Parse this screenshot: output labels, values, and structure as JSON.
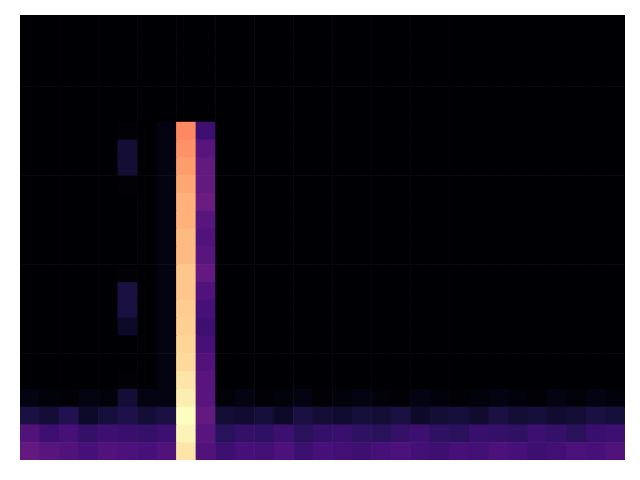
{
  "chart_data": {
    "type": "heatmap",
    "tick_labels": false,
    "values": [
      [
        3,
        3,
        3,
        3,
        3,
        3,
        3,
        3,
        3,
        3,
        3,
        3,
        3,
        3,
        3,
        3,
        3,
        3,
        3,
        3,
        3,
        3,
        3,
        3,
        3,
        3,
        3,
        3,
        3,
        3,
        3
      ],
      [
        3,
        3,
        3,
        3,
        3,
        3,
        3,
        3,
        3,
        3,
        3,
        3,
        3,
        3,
        3,
        3,
        3,
        3,
        3,
        3,
        3,
        3,
        3,
        3,
        3,
        3,
        3,
        3,
        3,
        3,
        3
      ],
      [
        3,
        3,
        3,
        3,
        3,
        3,
        3,
        3,
        3,
        3,
        3,
        3,
        3,
        3,
        3,
        3,
        3,
        3,
        3,
        3,
        3,
        3,
        3,
        3,
        3,
        3,
        3,
        3,
        3,
        3,
        3
      ],
      [
        3,
        3,
        3,
        3,
        3,
        3,
        3,
        3,
        3,
        3,
        3,
        3,
        3,
        3,
        3,
        3,
        3,
        3,
        3,
        3,
        3,
        3,
        3,
        3,
        3,
        3,
        3,
        3,
        3,
        3,
        3
      ],
      [
        3,
        3,
        3,
        3,
        3,
        3,
        3,
        3,
        3,
        3,
        3,
        3,
        3,
        3,
        3,
        3,
        3,
        3,
        3,
        3,
        3,
        3,
        3,
        3,
        3,
        3,
        3,
        3,
        3,
        3,
        3
      ],
      [
        3,
        3,
        3,
        3,
        3,
        3,
        3,
        3,
        3,
        3,
        3,
        3,
        3,
        3,
        3,
        3,
        3,
        3,
        3,
        3,
        3,
        3,
        3,
        3,
        3,
        3,
        3,
        3,
        3,
        3,
        3
      ],
      [
        3,
        3,
        3,
        3,
        3,
        4,
        3,
        6,
        72,
        22,
        3,
        3,
        3,
        3,
        3,
        3,
        3,
        3,
        3,
        3,
        3,
        3,
        3,
        3,
        3,
        3,
        3,
        3,
        3,
        3,
        3
      ],
      [
        3,
        3,
        3,
        3,
        3,
        12,
        3,
        6,
        74,
        28,
        3,
        3,
        3,
        3,
        3,
        3,
        3,
        3,
        3,
        3,
        3,
        3,
        3,
        3,
        3,
        3,
        3,
        3,
        3,
        3,
        3
      ],
      [
        3,
        3,
        3,
        3,
        3,
        12,
        3,
        6,
        76,
        30,
        3,
        3,
        3,
        3,
        3,
        3,
        3,
        3,
        3,
        3,
        3,
        3,
        3,
        3,
        3,
        3,
        3,
        3,
        3,
        3,
        3
      ],
      [
        3,
        3,
        3,
        3,
        3,
        4,
        3,
        6,
        78,
        30,
        3,
        3,
        3,
        3,
        3,
        3,
        3,
        3,
        3,
        3,
        3,
        3,
        3,
        3,
        3,
        3,
        3,
        3,
        3,
        3,
        3
      ],
      [
        3,
        3,
        3,
        3,
        3,
        3,
        3,
        6,
        80,
        32,
        3,
        3,
        3,
        3,
        3,
        3,
        3,
        3,
        3,
        3,
        3,
        3,
        3,
        3,
        3,
        3,
        3,
        3,
        3,
        3,
        3
      ],
      [
        3,
        3,
        3,
        3,
        3,
        3,
        3,
        6,
        80,
        28,
        3,
        3,
        3,
        3,
        3,
        3,
        3,
        3,
        3,
        3,
        3,
        3,
        3,
        3,
        3,
        3,
        3,
        3,
        3,
        3,
        3
      ],
      [
        3,
        3,
        3,
        3,
        3,
        3,
        3,
        6,
        82,
        26,
        3,
        3,
        3,
        3,
        3,
        3,
        3,
        3,
        3,
        3,
        3,
        3,
        3,
        3,
        3,
        3,
        3,
        3,
        3,
        3,
        3
      ],
      [
        3,
        3,
        3,
        3,
        3,
        3,
        3,
        6,
        82,
        28,
        3,
        3,
        3,
        3,
        3,
        3,
        3,
        3,
        3,
        3,
        3,
        3,
        3,
        3,
        3,
        3,
        3,
        3,
        3,
        3,
        3
      ],
      [
        3,
        3,
        3,
        3,
        3,
        4,
        3,
        6,
        84,
        30,
        3,
        3,
        3,
        3,
        3,
        3,
        3,
        3,
        3,
        3,
        3,
        3,
        3,
        3,
        3,
        3,
        3,
        3,
        3,
        3,
        3
      ],
      [
        3,
        3,
        3,
        3,
        3,
        14,
        3,
        6,
        84,
        26,
        3,
        3,
        3,
        3,
        3,
        3,
        3,
        3,
        3,
        3,
        3,
        3,
        3,
        3,
        3,
        3,
        3,
        3,
        3,
        3,
        3
      ],
      [
        3,
        3,
        3,
        3,
        3,
        14,
        3,
        6,
        85,
        24,
        3,
        3,
        3,
        3,
        3,
        3,
        3,
        3,
        3,
        3,
        3,
        3,
        3,
        3,
        3,
        3,
        3,
        3,
        3,
        3,
        3
      ],
      [
        3,
        3,
        3,
        3,
        3,
        10,
        3,
        6,
        86,
        22,
        3,
        3,
        3,
        3,
        3,
        3,
        3,
        3,
        3,
        3,
        3,
        3,
        3,
        3,
        3,
        3,
        3,
        3,
        3,
        3,
        3
      ],
      [
        3,
        3,
        3,
        3,
        3,
        3,
        3,
        6,
        87,
        24,
        3,
        3,
        3,
        3,
        3,
        3,
        3,
        3,
        3,
        3,
        3,
        3,
        3,
        3,
        3,
        3,
        3,
        3,
        3,
        3,
        3
      ],
      [
        3,
        3,
        3,
        3,
        3,
        3,
        3,
        6,
        88,
        26,
        3,
        3,
        3,
        3,
        3,
        3,
        3,
        3,
        3,
        3,
        3,
        3,
        3,
        3,
        3,
        3,
        3,
        3,
        3,
        3,
        3
      ],
      [
        3,
        3,
        3,
        3,
        3,
        4,
        3,
        6,
        90,
        28,
        3,
        3,
        3,
        3,
        3,
        3,
        3,
        3,
        3,
        3,
        3,
        3,
        3,
        3,
        3,
        3,
        3,
        3,
        3,
        3,
        3
      ],
      [
        6,
        5,
        4,
        6,
        5,
        12,
        6,
        6,
        92,
        28,
        5,
        6,
        4,
        5,
        6,
        4,
        5,
        6,
        5,
        4,
        6,
        5,
        4,
        5,
        6,
        5,
        4,
        6,
        5,
        6,
        5
      ],
      [
        14,
        12,
        16,
        10,
        13,
        15,
        12,
        14,
        95,
        30,
        12,
        11,
        13,
        10,
        14,
        12,
        11,
        13,
        12,
        14,
        10,
        12,
        13,
        11,
        14,
        12,
        13,
        11,
        12,
        14,
        13
      ],
      [
        26,
        22,
        24,
        20,
        22,
        21,
        20,
        22,
        93,
        28,
        18,
        20,
        19,
        22,
        18,
        20,
        21,
        19,
        18,
        20,
        22,
        19,
        18,
        21,
        20,
        19,
        22,
        20,
        18,
        21,
        22
      ],
      [
        30,
        28,
        26,
        24,
        26,
        25,
        24,
        26,
        90,
        26,
        22,
        24,
        23,
        25,
        22,
        24,
        23,
        22,
        24,
        25,
        23,
        22,
        24,
        23,
        25,
        24,
        22,
        23,
        25,
        24,
        26
      ]
    ]
  }
}
